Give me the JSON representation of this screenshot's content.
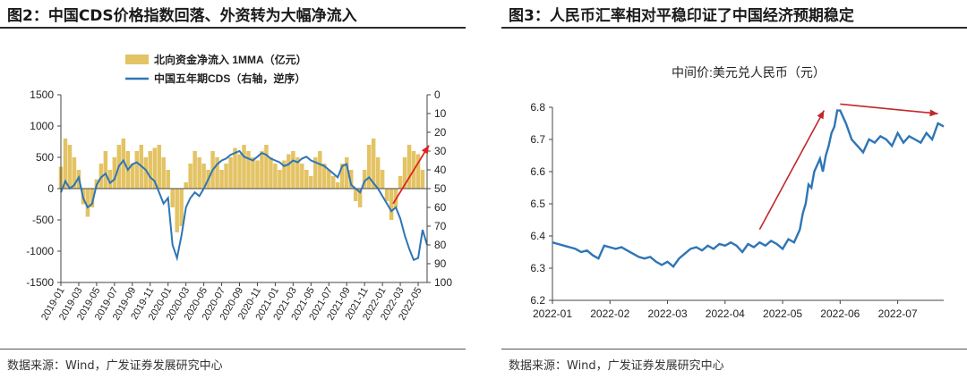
{
  "chart_data": [
    {
      "type": "bar+line",
      "title": "图2：中国CDS价格指数回落、外资转为大幅净流入",
      "source": "数据来源：Wind，广发证券发展研究中心",
      "legend": {
        "position": "top-center",
        "entries": [
          "北向资金净流入 1MMA（亿元）",
          "中国五年期CDS（右轴，逆序）"
        ]
      },
      "x_ticks": [
        "2019-01",
        "2019-03",
        "2019-05",
        "2019-07",
        "2019-09",
        "2019-11",
        "2020-01",
        "2020-03",
        "2020-05",
        "2020-07",
        "2020-09",
        "2020-11",
        "2021-01",
        "2021-03",
        "2021-05",
        "2021-07",
        "2021-09",
        "2021-11",
        "2022-01",
        "2022-03",
        "2022-05"
      ],
      "x_range": [
        "2019-01",
        "2022-05"
      ],
      "y_left_ticks": [
        "1500",
        "1000",
        "500",
        "0",
        "-500",
        "-1000",
        "-1500"
      ],
      "y_left_range": [
        -1500,
        1500
      ],
      "y_right_ticks": [
        "0",
        "10",
        "20",
        "30",
        "40",
        "50",
        "60",
        "70",
        "80",
        "90",
        "100"
      ],
      "y_right_range": [
        0,
        100
      ],
      "y_right_inverted": true,
      "series": [
        {
          "name": "北向资金净流入 1MMA（亿元）",
          "kind": "bar",
          "axis": "left",
          "color": "#e3c364",
          "t": [
            0,
            0.5,
            1,
            1.5,
            2,
            2.5,
            3,
            3.5,
            4,
            4.5,
            5,
            5.5,
            6,
            6.5,
            7,
            7.5,
            8,
            8.5,
            9,
            9.5,
            10,
            10.5,
            11,
            11.5,
            12,
            12.5,
            13,
            13.5,
            14,
            14.5,
            15,
            15.5,
            16,
            16.5,
            17,
            17.5,
            18,
            18.5,
            19,
            19.5,
            20,
            20.5,
            21,
            21.5,
            22,
            22.5,
            23,
            23.5,
            24,
            24.5,
            25,
            25.5,
            26,
            26.5,
            27,
            27.5,
            28,
            28.5,
            29,
            29.5,
            30,
            30.5,
            31,
            31.5,
            32,
            32.5,
            33,
            33.5,
            34,
            34.5,
            35,
            35.5,
            36,
            36.5,
            37,
            37.5,
            38,
            38.5,
            39,
            39.5,
            40,
            40.5
          ],
          "values": [
            350,
            800,
            700,
            500,
            300,
            -250,
            -450,
            -300,
            150,
            400,
            600,
            300,
            500,
            700,
            800,
            600,
            400,
            600,
            700,
            500,
            600,
            650,
            700,
            500,
            300,
            -300,
            -700,
            -600,
            100,
            400,
            600,
            500,
            400,
            300,
            600,
            500,
            300,
            400,
            500,
            650,
            550,
            700,
            600,
            500,
            450,
            600,
            700,
            500,
            400,
            300,
            450,
            550,
            600,
            500,
            400,
            300,
            200,
            500,
            600,
            400,
            300,
            200,
            100,
            400,
            500,
            300,
            -200,
            -300,
            300,
            700,
            800,
            500,
            300,
            -200,
            -500,
            -300,
            200,
            500,
            700,
            600,
            550,
            300
          ]
        },
        {
          "name": "中国五年期CDS（右轴，逆序）",
          "kind": "line",
          "axis": "right",
          "color": "#2e75b6",
          "t": [
            0,
            0.5,
            1,
            1.5,
            2,
            2.5,
            3,
            3.5,
            4,
            4.5,
            5,
            5.5,
            6,
            6.5,
            7,
            7.5,
            8,
            8.5,
            9,
            9.5,
            10,
            10.5,
            11,
            11.5,
            12,
            12.5,
            13,
            13.5,
            14,
            14.5,
            15,
            15.5,
            16,
            16.5,
            17,
            17.5,
            18,
            18.5,
            19,
            19.5,
            20,
            20.5,
            21,
            21.5,
            22,
            22.5,
            23,
            23.5,
            24,
            24.5,
            25,
            25.5,
            26,
            26.5,
            27,
            27.5,
            28,
            28.5,
            29,
            29.5,
            30,
            30.5,
            31,
            31.5,
            32,
            32.5,
            33,
            33.5,
            34,
            34.5,
            35,
            35.5,
            36,
            36.5,
            37,
            37.5,
            38,
            38.5,
            39,
            39.5,
            40,
            40.5,
            41
          ],
          "values": [
            52,
            46,
            50,
            48,
            44,
            55,
            60,
            58,
            48,
            44,
            42,
            47,
            45,
            38,
            35,
            40,
            37,
            36,
            38,
            40,
            44,
            46,
            52,
            58,
            55,
            80,
            87,
            75,
            60,
            55,
            52,
            54,
            50,
            45,
            40,
            37,
            35,
            34,
            32,
            31,
            30,
            33,
            34,
            35,
            33,
            31,
            32,
            34,
            35,
            36,
            38,
            37,
            35,
            36,
            34,
            33,
            35,
            36,
            37,
            38,
            40,
            42,
            44,
            38,
            37,
            48,
            50,
            52,
            46,
            44,
            47,
            50,
            54,
            58,
            62,
            60,
            66,
            75,
            82,
            88,
            87,
            72,
            80
          ]
        }
      ],
      "annotations": [
        {
          "type": "arrow",
          "color": "#e02020",
          "from": {
            "t": 37.2,
            "y_right": 58
          },
          "to": {
            "t": 41.2,
            "y_right": 27
          }
        }
      ]
    },
    {
      "type": "line",
      "title": "图3：人民币汇率相对平稳印证了中国经济预期稳定",
      "subtitle": "中间价:美元兑人民币（元）",
      "source": "数据来源：Wind，广发证券发展研究中心",
      "x_ticks": [
        "2022-01",
        "2022-02",
        "2022-03",
        "2022-04",
        "2022-05",
        "2022-06",
        "2022-07"
      ],
      "x_range": [
        "2022-01",
        "2022-07-25"
      ],
      "y_ticks": [
        "6.8",
        "6.7",
        "6.6",
        "6.5",
        "6.4",
        "6.3",
        "6.2"
      ],
      "ylim": [
        6.2,
        6.8
      ],
      "grid": false,
      "series": [
        {
          "color": "#2e75b6",
          "t": [
            0,
            0.1,
            0.2,
            0.3,
            0.4,
            0.5,
            0.6,
            0.7,
            0.8,
            0.9,
            1.0,
            1.1,
            1.2,
            1.3,
            1.4,
            1.5,
            1.6,
            1.7,
            1.8,
            1.9,
            2.0,
            2.1,
            2.2,
            2.3,
            2.4,
            2.5,
            2.6,
            2.7,
            2.8,
            2.9,
            3.0,
            3.1,
            3.2,
            3.3,
            3.4,
            3.5,
            3.6,
            3.7,
            3.8,
            3.9,
            4.0,
            4.1,
            4.2,
            4.3,
            4.35,
            4.4,
            4.45,
            4.5,
            4.55,
            4.6,
            4.65,
            4.7,
            4.75,
            4.8,
            4.85,
            4.9,
            4.95,
            5.0,
            5.1,
            5.2,
            5.3,
            5.4,
            5.5,
            5.6,
            5.7,
            5.8,
            5.9,
            6.0,
            6.1,
            6.2,
            6.3,
            6.4,
            6.5,
            6.6,
            6.7,
            6.8
          ],
          "values": [
            6.38,
            6.375,
            6.37,
            6.365,
            6.36,
            6.35,
            6.355,
            6.34,
            6.33,
            6.37,
            6.365,
            6.36,
            6.365,
            6.355,
            6.345,
            6.335,
            6.33,
            6.335,
            6.32,
            6.31,
            6.32,
            6.305,
            6.33,
            6.345,
            6.36,
            6.365,
            6.355,
            6.37,
            6.36,
            6.375,
            6.37,
            6.38,
            6.37,
            6.35,
            6.375,
            6.365,
            6.38,
            6.37,
            6.385,
            6.375,
            6.36,
            6.39,
            6.38,
            6.42,
            6.47,
            6.5,
            6.56,
            6.55,
            6.6,
            6.62,
            6.64,
            6.6,
            6.65,
            6.68,
            6.72,
            6.74,
            6.79,
            6.79,
            6.75,
            6.7,
            6.68,
            6.66,
            6.7,
            6.69,
            6.71,
            6.7,
            6.68,
            6.72,
            6.69,
            6.71,
            6.7,
            6.69,
            6.72,
            6.7,
            6.75,
            6.74
          ]
        }
      ],
      "annotations": [
        {
          "type": "arrow",
          "color": "#c0282c",
          "from": {
            "t": 3.6,
            "y": 6.42
          },
          "to": {
            "t": 4.72,
            "y": 6.79
          }
        },
        {
          "type": "arrow",
          "color": "#c0282c",
          "from": {
            "t": 5.0,
            "y": 6.81
          },
          "to": {
            "t": 6.7,
            "y": 6.78
          }
        }
      ]
    }
  ]
}
